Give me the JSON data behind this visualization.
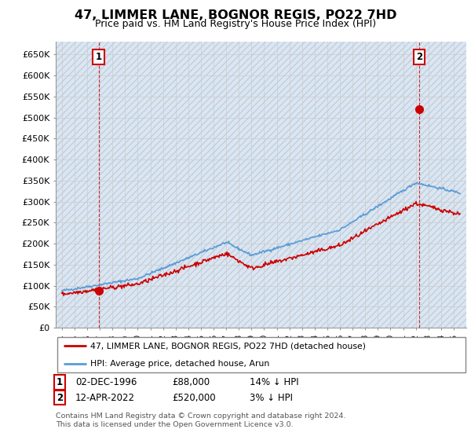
{
  "title": "47, LIMMER LANE, BOGNOR REGIS, PO22 7HD",
  "subtitle": "Price paid vs. HM Land Registry's House Price Index (HPI)",
  "sale1_x": 1996.92,
  "sale1_y": 88000,
  "sale1_date": "02-DEC-1996",
  "sale1_price_str": "£88,000",
  "sale1_hpi": "14% ↓ HPI",
  "sale2_x": 2022.28,
  "sale2_y": 520000,
  "sale2_date": "12-APR-2022",
  "sale2_price_str": "£520,000",
  "sale2_hpi": "3% ↓ HPI",
  "legend_line1": "47, LIMMER LANE, BOGNOR REGIS, PO22 7HD (detached house)",
  "legend_line2": "HPI: Average price, detached house, Arun",
  "footer": "Contains HM Land Registry data © Crown copyright and database right 2024.\nThis data is licensed under the Open Government Licence v3.0.",
  "ylim": [
    0,
    680000
  ],
  "xlim": [
    1993.5,
    2026.0
  ],
  "yticks": [
    0,
    50000,
    100000,
    150000,
    200000,
    250000,
    300000,
    350000,
    400000,
    450000,
    500000,
    550000,
    600000,
    650000
  ],
  "ytick_labels": [
    "£0",
    "£50K",
    "£100K",
    "£150K",
    "£200K",
    "£250K",
    "£300K",
    "£350K",
    "£400K",
    "£450K",
    "£500K",
    "£550K",
    "£600K",
    "£650K"
  ],
  "hpi_color": "#5b9bd5",
  "sale_color": "#cc0000",
  "grid_color": "#cccccc",
  "bg_color": "#dce6f1",
  "hatch_color": "#bfcfe0"
}
